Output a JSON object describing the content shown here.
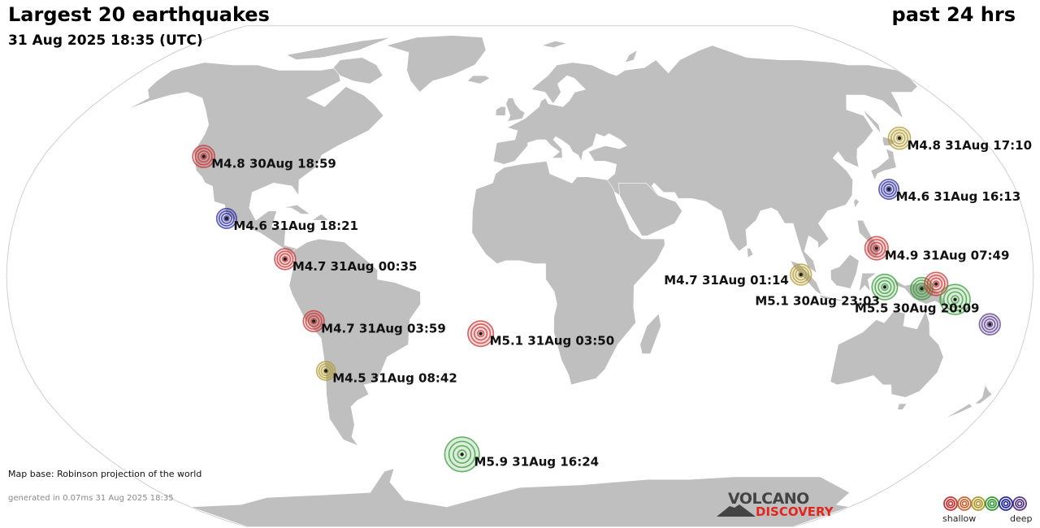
{
  "header": {
    "title": "Largest 20 earthquakes",
    "date": "31 Aug 2025 18:35 (UTC)",
    "period": "past 24 hrs"
  },
  "footer": {
    "map_base": "Map base: Robinson projection of the world",
    "generated": "generated in 0.07ms 31 Aug 2025 18:35"
  },
  "logo": {
    "line1": "VOLCANO",
    "line2": "DISCOVERY"
  },
  "legend": {
    "shallow": "shallow",
    "deep": "deep",
    "depth_colors": [
      "#cc3333",
      "#cc6633",
      "#b09a30",
      "#3a9a3a",
      "#2a2aa0",
      "#5a3a8a"
    ]
  },
  "colors": {
    "land": "#bfbfbf",
    "ocean": "#ffffff",
    "shallow": "#cc3333",
    "intermediate": "#b09a30",
    "mid_deep": "#3a9a3a",
    "deep": "#2a2aa0",
    "very_deep": "#5a3a8a"
  },
  "quakes": [
    {
      "id": "q1",
      "label": "M4.8 30Aug 18:59",
      "mag": 4.8,
      "lon": -119.5,
      "lat": 38.5,
      "depth": "shallow"
    },
    {
      "id": "q2",
      "label": "M4.6 31Aug 18:21",
      "mag": 4.6,
      "lon": -104.5,
      "lat": 18.6,
      "depth": "deep"
    },
    {
      "id": "q3",
      "label": "M4.7 31Aug 00:35",
      "mag": 4.7,
      "lon": -82.5,
      "lat": 5.5,
      "depth": "shallow"
    },
    {
      "id": "q4",
      "label": "M4.7 31Aug 03:59",
      "mag": 4.7,
      "lon": -73.0,
      "lat": -14.5,
      "depth": "shallow"
    },
    {
      "id": "q5",
      "label": "M4.5 31Aug 08:42",
      "mag": 4.5,
      "lon": -71.0,
      "lat": -30.5,
      "depth": "intermediate"
    },
    {
      "id": "q6",
      "label": "M5.1 31Aug 03:50",
      "mag": 5.1,
      "lon": -14.0,
      "lat": -18.5,
      "depth": "shallow"
    },
    {
      "id": "q7",
      "label": "M5.9 31Aug 16:24",
      "mag": 5.9,
      "lon": -25.0,
      "lat": -58.0,
      "depth": "mid_deep"
    },
    {
      "id": "q8",
      "label": "M4.8 31Aug 17:10",
      "mag": 4.8,
      "lon": 148.0,
      "lat": 44.5,
      "depth": "intermediate"
    },
    {
      "id": "q9",
      "label": "M4.6 31Aug 16:13",
      "mag": 4.6,
      "lon": 134.0,
      "lat": 28.0,
      "depth": "deep"
    },
    {
      "id": "q10",
      "label": "M4.9 31Aug 07:49",
      "mag": 4.9,
      "lon": 125.5,
      "lat": 9.0,
      "depth": "shallow"
    },
    {
      "id": "q11",
      "label": "M4.7 31Aug 01:14",
      "mag": 4.7,
      "lon": 98.5,
      "lat": 0.5,
      "depth": "intermediate"
    },
    {
      "id": "q12",
      "label": "M5.1 30Aug 23:03",
      "mag": 5.1,
      "lon": 128.0,
      "lat": -3.5,
      "depth": "mid_deep"
    },
    {
      "id": "q13",
      "label": "",
      "mag": 4.8,
      "lon": 141.0,
      "lat": -4.0,
      "depth": "mid_deep"
    },
    {
      "id": "q14",
      "label": "",
      "mag": 4.9,
      "lon": 146.0,
      "lat": -2.5,
      "depth": "shallow"
    },
    {
      "id": "q15",
      "label": "M5.5 30Aug 20:09",
      "mag": 5.5,
      "lon": 153.0,
      "lat": -7.5,
      "depth": "mid_deep"
    },
    {
      "id": "q16",
      "label": "",
      "mag": 4.7,
      "lon": 166.5,
      "lat": -15.5,
      "depth": "very_deep"
    }
  ]
}
